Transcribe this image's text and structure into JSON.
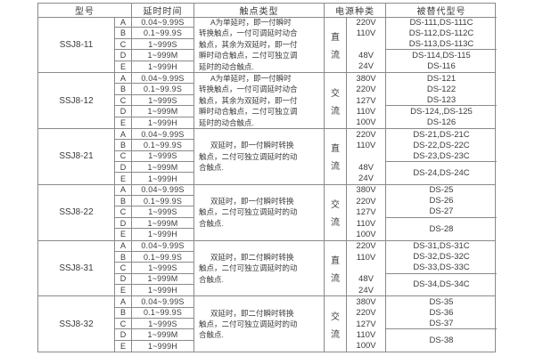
{
  "colors": {
    "border": "#8a8a8a",
    "text": "#3b3b3b",
    "page_bg": "#ffffff"
  },
  "table": {
    "headers": {
      "model": "型号",
      "delay": "延时时间",
      "contact": "触点类型",
      "power": "电源种类",
      "replaced": "被替代型号"
    },
    "blocks": [
      {
        "model": "SSJ8-11",
        "rows": [
          {
            "letter": "A",
            "delay": "0.04~9.99S"
          },
          {
            "letter": "B",
            "delay": "0.1~99.9S"
          },
          {
            "letter": "C",
            "delay": "1~999S"
          },
          {
            "letter": "D",
            "delay": "1~999M"
          },
          {
            "letter": "E",
            "delay": "1~999H"
          }
        ],
        "contact_lines": [
          "A为单延时，即一付瞬时",
          "转换触点，一付可调延时动合",
          "触点，其余为双延时，即一付",
          "瞬时动合触点，二付可独立调",
          "延时的动合触点."
        ],
        "power_chars": [
          "直",
          "流"
        ],
        "voltages": [
          "220V",
          "110V",
          "",
          "48V",
          "24V"
        ],
        "replaced_top": [
          "DS-111,DS-111C",
          "DS-112,DS-112C",
          "DS-113,DS-113C"
        ],
        "replaced_bottom": [
          "DS-114,DS-115",
          "DS-116"
        ]
      },
      {
        "model": "SSJ8-12",
        "rows": [
          {
            "letter": "A",
            "delay": "0.04~9.99S"
          },
          {
            "letter": "B",
            "delay": "0.1~99.9S"
          },
          {
            "letter": "C",
            "delay": "1~999S"
          },
          {
            "letter": "D",
            "delay": "1~999M"
          },
          {
            "letter": "E",
            "delay": "1~999H"
          }
        ],
        "contact_lines": [
          "A为单延时，即一付瞬时",
          "转换触点，一付可调延时动合",
          "触点，其余为双延时，即一付",
          "瞬时动合触点，二付可独立调",
          "延时的动合触点."
        ],
        "power_chars": [
          "交",
          "流"
        ],
        "voltages": [
          "380V",
          "220V",
          "127V",
          "110V",
          "100V"
        ],
        "replaced_top": [
          "DS-121",
          "DS-122",
          "DS-123"
        ],
        "replaced_bottom": [
          "DS-124,,DS-125",
          "DS-126"
        ]
      },
      {
        "model": "SSJ8-21",
        "rows": [
          {
            "letter": "A",
            "delay": "0.04~9.99S"
          },
          {
            "letter": "B",
            "delay": "0.1~99.9S"
          },
          {
            "letter": "C",
            "delay": "1~999S"
          },
          {
            "letter": "D",
            "delay": "1~999M"
          },
          {
            "letter": "E",
            "delay": "1~999H"
          }
        ],
        "contact_lines": [
          "双延时，即一付瞬时转换",
          "触点，二付可独立调延时的动",
          "合触点."
        ],
        "power_chars": [
          "直",
          "流"
        ],
        "voltages": [
          "220V",
          "110V",
          "",
          "48V",
          "24V"
        ],
        "replaced_top": [
          "DS-21,DS-21C",
          "DS-22,DS-22C",
          "DS-23,DS-23C"
        ],
        "replaced_bottom": [
          "DS-24,DS-24C"
        ]
      },
      {
        "model": "SSJ8-22",
        "rows": [
          {
            "letter": "A",
            "delay": "0.04~9.99S"
          },
          {
            "letter": "B",
            "delay": "0.1~99.9S"
          },
          {
            "letter": "C",
            "delay": "1~999S"
          },
          {
            "letter": "D",
            "delay": "1~999M"
          },
          {
            "letter": "E",
            "delay": "1~999H"
          }
        ],
        "contact_lines": [
          "双延时，即一付瞬时转换",
          "触点，二付可独立调延时的动",
          "合触点."
        ],
        "power_chars": [
          "交",
          "流"
        ],
        "voltages": [
          "380V",
          "220V",
          "127V",
          "110V",
          "100V"
        ],
        "replaced_top": [
          "DS-25",
          "DS-26",
          "DS-27"
        ],
        "replaced_bottom": [
          "DS-28"
        ]
      },
      {
        "model": "SSJ8-31",
        "rows": [
          {
            "letter": "A",
            "delay": "0.04~9.99S"
          },
          {
            "letter": "B",
            "delay": "0.1~99.9S"
          },
          {
            "letter": "C",
            "delay": "1~999S"
          },
          {
            "letter": "D",
            "delay": "1~999M"
          },
          {
            "letter": "E",
            "delay": "1~999H"
          }
        ],
        "contact_lines": [
          "双延时，即二付瞬时转换",
          "触点，二付可独立调延时的动",
          "合触点."
        ],
        "power_chars": [
          "直",
          "流"
        ],
        "voltages": [
          "220V",
          "110V",
          "",
          "48V",
          "24V"
        ],
        "replaced_top": [
          "DS-31,DS-31C",
          "DS-32,DS-32C",
          "DS-33,DS-33C"
        ],
        "replaced_bottom": [
          "DS-34,DS-34C"
        ]
      },
      {
        "model": "SSJ8-32",
        "rows": [
          {
            "letter": "A",
            "delay": "0.04~9.99S"
          },
          {
            "letter": "B",
            "delay": "0.1~99.9S"
          },
          {
            "letter": "C",
            "delay": "1~999S"
          },
          {
            "letter": "D",
            "delay": "1~999M"
          },
          {
            "letter": "E",
            "delay": "1~999H"
          }
        ],
        "contact_lines": [
          "双延时，即二付瞬时转换",
          "触点，二付可独立调延时的动",
          "合触点."
        ],
        "power_chars": [
          "交",
          "流"
        ],
        "voltages": [
          "380V",
          "220V",
          "127V",
          "110V",
          "100V"
        ],
        "replaced_top": [
          "DS-35",
          "DS-36",
          "DS-37"
        ],
        "replaced_bottom": [
          "DS-38"
        ]
      }
    ]
  }
}
